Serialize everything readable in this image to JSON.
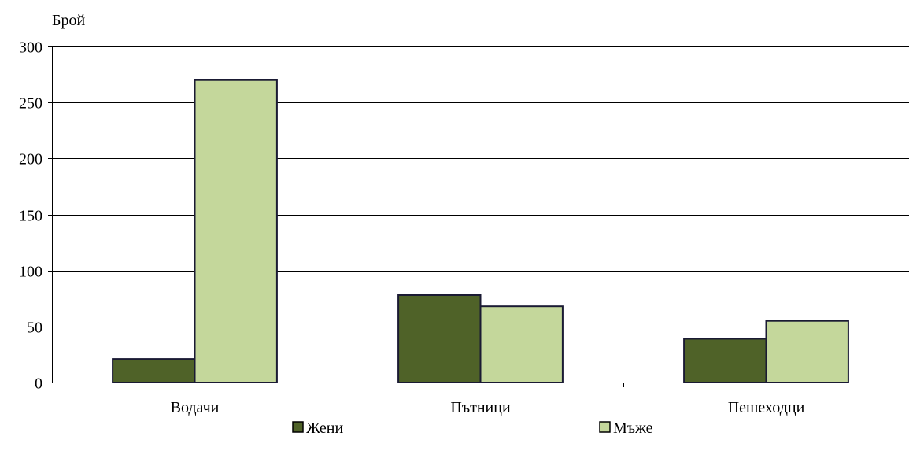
{
  "chart_data": {
    "type": "bar",
    "title": "",
    "xlabel": "",
    "ylabel": "Брой",
    "ylim": [
      0,
      300
    ],
    "yticks": [
      0,
      50,
      100,
      150,
      200,
      250,
      300
    ],
    "grid": true,
    "legend_position": "bottom",
    "categories": [
      "Водачи",
      "Пътници",
      "Пешеходци"
    ],
    "series": [
      {
        "name": "Жени",
        "color": "#4f6228",
        "values": [
          21,
          78,
          39
        ]
      },
      {
        "name": "Мъже",
        "color": "#c4d79b",
        "values": [
          270,
          68,
          55
        ]
      }
    ]
  }
}
